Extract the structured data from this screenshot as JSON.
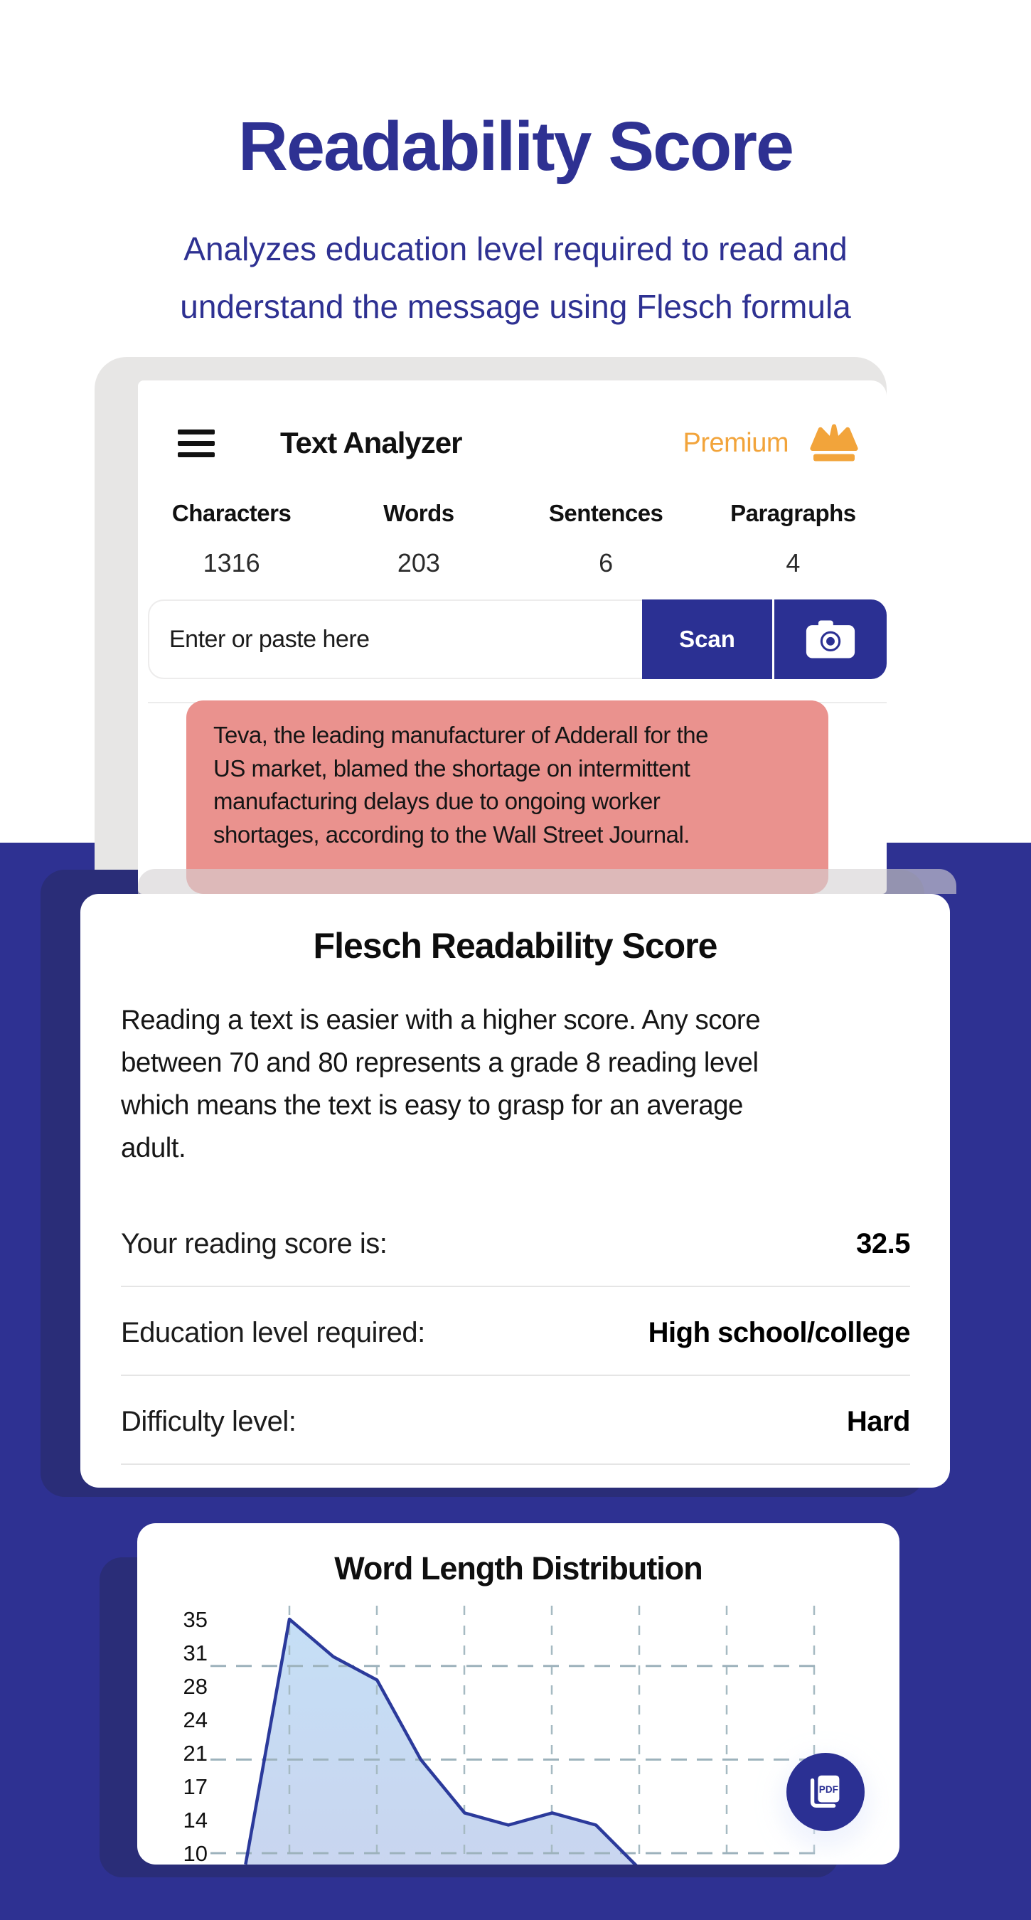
{
  "hero": {
    "title": "Readability Score",
    "subtitle": "Analyzes education level required to read and\nunderstand the message using Flesch formula"
  },
  "app_card": {
    "title": "Text Analyzer",
    "premium_label": "Premium",
    "stats": [
      {
        "label": "Characters",
        "value": "1316"
      },
      {
        "label": "Words",
        "value": "203"
      },
      {
        "label": "Sentences",
        "value": "6"
      },
      {
        "label": "Paragraphs",
        "value": "4"
      }
    ],
    "input": {
      "placeholder": "Enter or paste here",
      "scan_label": "Scan"
    },
    "highlighted_text": "Teva, the leading manufacturer of Adderall for the\nUS market, blamed the shortage on intermittent\nmanufacturing delays due to ongoing worker\nshortages, according to the Wall Street Journal."
  },
  "result_card": {
    "title": "Flesch Readability Score",
    "description": "Reading a text is easier with a higher score. Any score\nbetween 70 and 80 represents a grade 8 reading level\nwhich means the text is easy to grasp for an average\nadult.",
    "rows": [
      {
        "label": "Your reading score is:",
        "value": "32.5"
      },
      {
        "label": "Education level required:",
        "value": "High school/college"
      },
      {
        "label": "Difficulty level:",
        "value": "Hard"
      }
    ]
  },
  "chart_card": {
    "title": "Word Length Distribution"
  },
  "chart_data": {
    "type": "area",
    "title": "Word Length Distribution",
    "x_implied": [
      1,
      2,
      3,
      4,
      5,
      6,
      7,
      8,
      9,
      10
    ],
    "values": [
      8.8,
      35,
      31,
      28.5,
      20,
      14.3,
      13,
      14.3,
      13,
      8.3
    ],
    "y_tick_labels": [
      "35",
      "31",
      "28",
      "24",
      "21",
      "17",
      "14",
      "10"
    ],
    "gridline_values": [
      30,
      20,
      10
    ],
    "ylim": [
      10,
      35
    ],
    "grid": "dashed",
    "legend": "none",
    "line_color": "#2B3A9B",
    "fill_top": "#C5DFF6",
    "fill_bottom": "#C9D5EF",
    "grid_color": "#A6BAC2"
  },
  "fab": {
    "label": "PDF"
  },
  "colors": {
    "background_blue": "#2E3192",
    "backdrop_navy": "#2A2D78",
    "accent_orange": "#F2A43B",
    "highlight_red": "#EA928E",
    "button_blue": "#2B3093",
    "title_indigo": "#2E3192"
  }
}
